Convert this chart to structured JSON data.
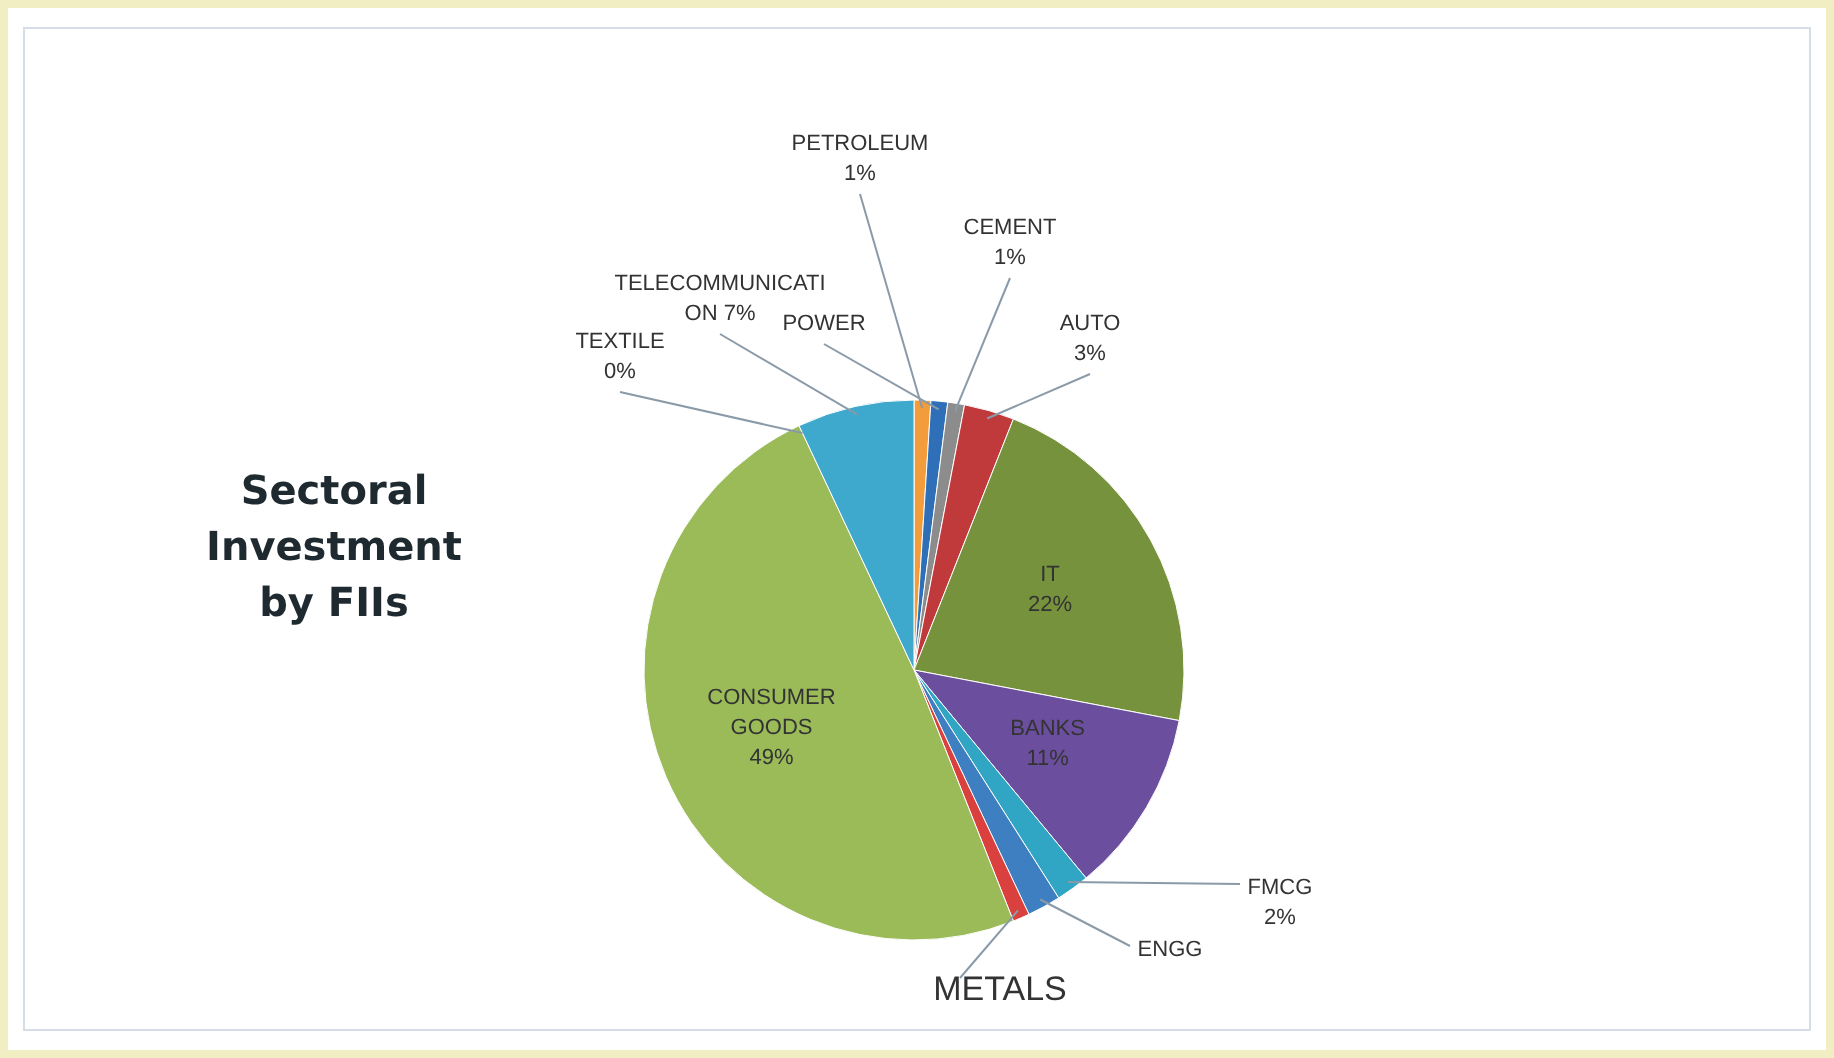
{
  "chart_data": {
    "type": "pie",
    "title": "Sectoral Investment by FIIs",
    "categories": [
      "PETROLEUM",
      "POWER",
      "CEMENT",
      "AUTO",
      "IT",
      "BANKS",
      "FMCG",
      "ENGG",
      "METALS",
      "CONSUMER GOODS",
      "TEXTILE",
      "TELECOMMUNICATION"
    ],
    "values": [
      1,
      1,
      1,
      3,
      22,
      11,
      2,
      2,
      1,
      49,
      0,
      7
    ],
    "value_labels": [
      "1%",
      null,
      "1%",
      "3%",
      "22%",
      "11%",
      "2%",
      null,
      null,
      "49%",
      "0%",
      "7%"
    ],
    "colors": [
      "#f39c3b",
      "#2e6fb7",
      "#8c8c8c",
      "#c0393b",
      "#76923c",
      "#6b4f9e",
      "#31a5c4",
      "#3d7fc1",
      "#d9403e",
      "#9bbb59",
      null,
      "#3ea8cd"
    ]
  }
}
